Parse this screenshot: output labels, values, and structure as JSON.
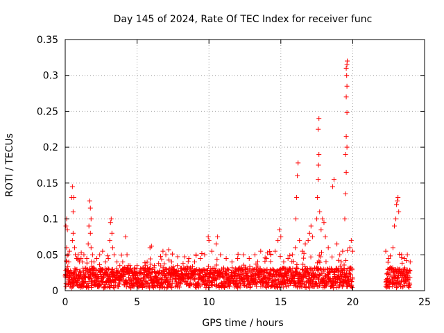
{
  "chart_data": {
    "type": "scatter",
    "title": "Day 145 of 2024, Rate Of TEC Index for receiver func",
    "xlabel": "GPS time / hours",
    "ylabel": "ROTI / TECUs",
    "xlim": [
      0,
      25
    ],
    "ylim": [
      0,
      0.35
    ],
    "x_ticks": [
      0,
      5,
      10,
      15,
      20,
      25
    ],
    "x_tick_labels": [
      "0",
      "5",
      "10",
      "15",
      "20",
      "25"
    ],
    "y_ticks": [
      0,
      0.05,
      0.1,
      0.15,
      0.2,
      0.25,
      0.3,
      0.35
    ],
    "y_tick_labels": [
      "0",
      "0.05",
      "0.1",
      "0.15",
      "0.2",
      "0.25",
      "0.3",
      "0.35"
    ],
    "grid": true,
    "marker": "plus",
    "color": "#ff0000",
    "series": [
      {
        "points": [
          [
            0.05,
            0.09
          ],
          [
            0.1,
            0.1
          ],
          [
            0.15,
            0.085
          ],
          [
            0.1,
            0.06
          ],
          [
            0.2,
            0.05
          ],
          [
            0.25,
            0.04
          ],
          [
            0.3,
            0.055
          ],
          [
            0.45,
            0.13
          ],
          [
            0.5,
            0.145
          ],
          [
            0.55,
            0.11
          ],
          [
            0.6,
            0.13
          ],
          [
            0.55,
            0.08
          ],
          [
            0.5,
            0.07
          ],
          [
            0.65,
            0.06
          ],
          [
            0.7,
            0.05
          ],
          [
            0.8,
            0.045
          ],
          [
            0.9,
            0.05
          ],
          [
            1.0,
            0.04
          ],
          [
            1.1,
            0.045
          ],
          [
            1.2,
            0.04
          ],
          [
            1.3,
            0.05
          ],
          [
            1.5,
            0.045
          ],
          [
            1.6,
            0.065
          ],
          [
            1.65,
            0.09
          ],
          [
            1.7,
            0.125
          ],
          [
            1.75,
            0.115
          ],
          [
            1.8,
            0.1
          ],
          [
            1.75,
            0.08
          ],
          [
            1.8,
            0.06
          ],
          [
            1.9,
            0.05
          ],
          [
            2.0,
            0.04
          ],
          [
            2.2,
            0.045
          ],
          [
            2.4,
            0.05
          ],
          [
            2.6,
            0.055
          ],
          [
            2.8,
            0.04
          ],
          [
            3.0,
            0.045
          ],
          [
            3.1,
            0.07
          ],
          [
            3.15,
            0.095
          ],
          [
            3.2,
            0.1
          ],
          [
            3.25,
            0.08
          ],
          [
            3.3,
            0.06
          ],
          [
            3.4,
            0.05
          ],
          [
            3.6,
            0.04
          ],
          [
            3.8,
            0.035
          ],
          [
            4.0,
            0.04
          ],
          [
            4.2,
            0.075
          ],
          [
            4.3,
            0.05
          ],
          [
            4.5,
            0.035
          ],
          [
            4.8,
            0.03
          ],
          [
            5.0,
            0.035
          ],
          [
            5.3,
            0.03
          ],
          [
            5.6,
            0.035
          ],
          [
            5.9,
            0.06
          ],
          [
            6.0,
            0.062
          ],
          [
            6.2,
            0.035
          ],
          [
            6.5,
            0.038
          ],
          [
            6.8,
            0.055
          ],
          [
            7.0,
            0.05
          ],
          [
            7.2,
            0.057
          ],
          [
            7.4,
            0.04
          ],
          [
            7.8,
            0.035
          ],
          [
            8.2,
            0.038
          ],
          [
            8.6,
            0.045
          ],
          [
            9.0,
            0.04
          ],
          [
            9.4,
            0.045
          ],
          [
            9.7,
            0.05
          ],
          [
            9.95,
            0.075
          ],
          [
            10.0,
            0.07
          ],
          [
            10.2,
            0.055
          ],
          [
            10.5,
            0.065
          ],
          [
            10.6,
            0.075
          ],
          [
            10.8,
            0.05
          ],
          [
            11.2,
            0.045
          ],
          [
            11.6,
            0.04
          ],
          [
            12.0,
            0.045
          ],
          [
            12.4,
            0.05
          ],
          [
            12.8,
            0.045
          ],
          [
            13.2,
            0.05
          ],
          [
            13.6,
            0.055
          ],
          [
            14.0,
            0.045
          ],
          [
            14.3,
            0.05
          ],
          [
            14.6,
            0.055
          ],
          [
            14.8,
            0.07
          ],
          [
            14.9,
            0.085
          ],
          [
            15.0,
            0.075
          ],
          [
            15.2,
            0.04
          ],
          [
            15.5,
            0.045
          ],
          [
            15.8,
            0.05
          ],
          [
            16.0,
            0.06
          ],
          [
            16.05,
            0.1
          ],
          [
            16.1,
            0.13
          ],
          [
            16.15,
            0.16
          ],
          [
            16.2,
            0.178
          ],
          [
            16.3,
            0.07
          ],
          [
            16.5,
            0.055
          ],
          [
            16.7,
            0.065
          ],
          [
            16.9,
            0.07
          ],
          [
            17.0,
            0.08
          ],
          [
            17.1,
            0.09
          ],
          [
            17.2,
            0.075
          ],
          [
            17.5,
            0.1
          ],
          [
            17.55,
            0.13
          ],
          [
            17.6,
            0.155
          ],
          [
            17.62,
            0.175
          ],
          [
            17.65,
            0.19
          ],
          [
            17.6,
            0.225
          ],
          [
            17.65,
            0.24
          ],
          [
            17.7,
            0.11
          ],
          [
            17.8,
            0.085
          ],
          [
            17.9,
            0.1
          ],
          [
            18.0,
            0.095
          ],
          [
            18.1,
            0.075
          ],
          [
            18.3,
            0.06
          ],
          [
            18.6,
            0.145
          ],
          [
            18.7,
            0.155
          ],
          [
            18.9,
            0.065
          ],
          [
            19.1,
            0.05
          ],
          [
            19.3,
            0.055
          ],
          [
            19.45,
            0.1
          ],
          [
            19.5,
            0.135
          ],
          [
            19.55,
            0.165
          ],
          [
            19.5,
            0.19
          ],
          [
            19.6,
            0.2
          ],
          [
            19.55,
            0.215
          ],
          [
            19.6,
            0.248
          ],
          [
            19.55,
            0.27
          ],
          [
            19.6,
            0.285
          ],
          [
            19.58,
            0.3
          ],
          [
            19.6,
            0.315
          ],
          [
            19.62,
            0.32
          ],
          [
            19.55,
            0.31
          ],
          [
            19.8,
            0.06
          ],
          [
            19.9,
            0.07
          ],
          [
            20.0,
            0.055
          ],
          [
            22.3,
            0.055
          ],
          [
            22.5,
            0.045
          ],
          [
            22.8,
            0.06
          ],
          [
            22.9,
            0.09
          ],
          [
            23.0,
            0.1
          ],
          [
            23.05,
            0.12
          ],
          [
            23.1,
            0.125
          ],
          [
            23.15,
            0.13
          ],
          [
            23.2,
            0.11
          ],
          [
            23.4,
            0.05
          ],
          [
            23.6,
            0.045
          ],
          [
            23.8,
            0.05
          ],
          [
            24.0,
            0.04
          ]
        ]
      }
    ]
  }
}
